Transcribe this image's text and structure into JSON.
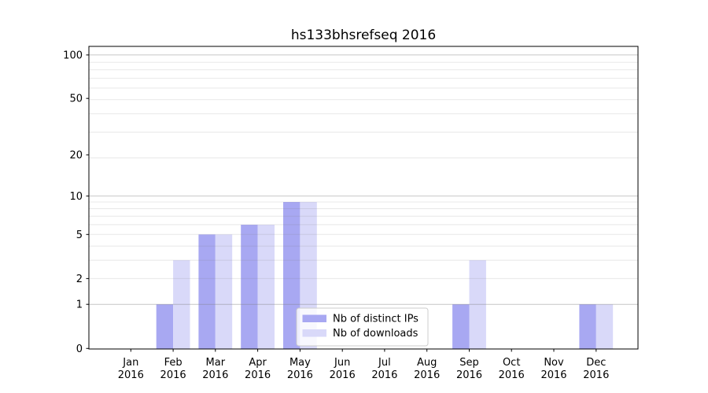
{
  "title": "hs133bhsrefseq 2016",
  "chart_data": {
    "type": "bar",
    "title": "hs133bhsrefseq 2016",
    "categories": [
      "Jan",
      "Feb",
      "Mar",
      "Apr",
      "May",
      "Jun",
      "Jul",
      "Aug",
      "Sep",
      "Oct",
      "Nov",
      "Dec"
    ],
    "tick_year": "2016",
    "series": [
      {
        "name": "Nb of distinct IPs",
        "color": "#a8a8f2",
        "values": [
          0,
          1,
          5,
          6,
          9,
          0,
          0,
          0,
          1,
          0,
          0,
          1
        ]
      },
      {
        "name": "Nb of downloads",
        "color": "#d9d9f9",
        "values": [
          0,
          3,
          5,
          6,
          9,
          0,
          0,
          0,
          3,
          0,
          0,
          1
        ]
      }
    ],
    "xlabel": "",
    "ylabel": "",
    "yscale": "log1p",
    "yticks": [
      100,
      50,
      20,
      10,
      5,
      2,
      1,
      0
    ],
    "ylim": [
      0,
      112
    ],
    "grid": true,
    "legend_position": "lower center",
    "colors": {
      "major_grid": "rgba(128,128,128,0.45)",
      "minor_grid": "rgba(128,128,128,0.18)",
      "spine": "#000000",
      "legend_border": "#cccccc",
      "legend_bg": "rgba(255,255,255,0.8)"
    }
  }
}
